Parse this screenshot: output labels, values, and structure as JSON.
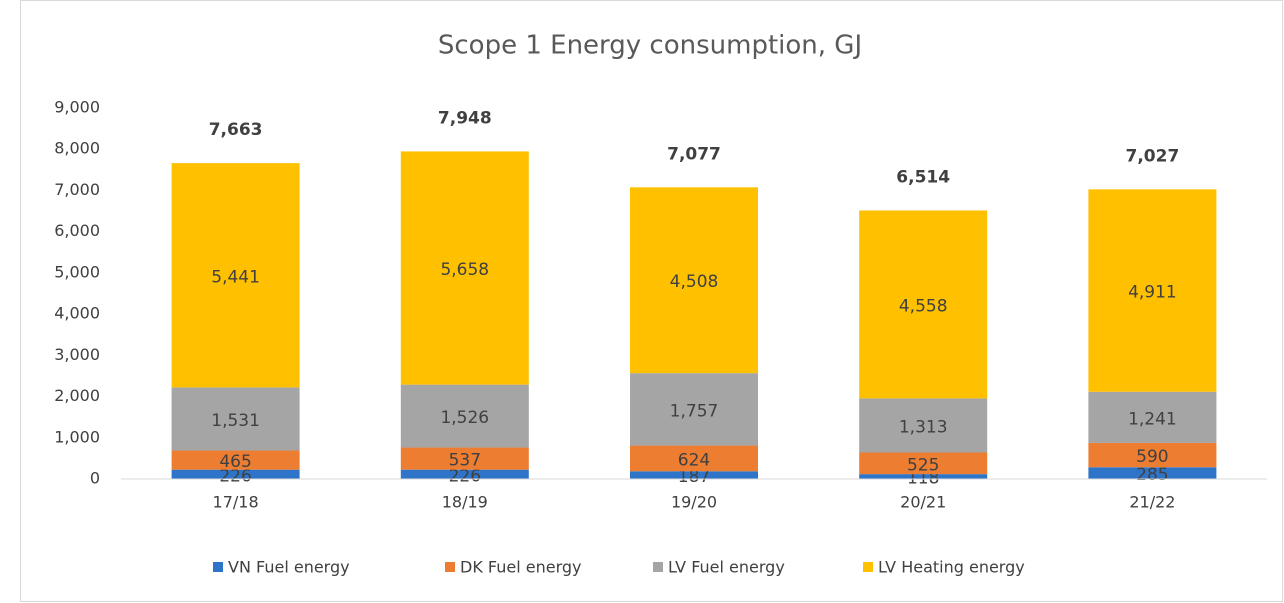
{
  "chart_data": {
    "type": "stacked_bar",
    "title": "Scope 1 Energy consumption, GJ",
    "categories": [
      "17/18",
      "18/19",
      "19/20",
      "20/21",
      "21/22"
    ],
    "series": [
      {
        "name": "VN Fuel energy",
        "color": "#2e75c9",
        "values": [
          226,
          226,
          187,
          118,
          285
        ],
        "value_labels": [
          "226",
          "226",
          "187",
          "118",
          "285"
        ]
      },
      {
        "name": "DK Fuel energy",
        "color": "#ed7d31",
        "values": [
          465,
          537,
          624,
          525,
          590
        ],
        "value_labels": [
          "465",
          "537",
          "624",
          "525",
          "590"
        ]
      },
      {
        "name": "LV Fuel energy",
        "color": "#a5a5a5",
        "values": [
          1531,
          1526,
          1757,
          1313,
          1241
        ],
        "value_labels": [
          "1,531",
          "1,526",
          "1,757",
          "1,313",
          "1,241"
        ]
      },
      {
        "name": "LV Heating energy",
        "color": "#ffc000",
        "values": [
          5441,
          5658,
          4508,
          4558,
          4911
        ],
        "value_labels": [
          "5,441",
          "5,658",
          "4,508",
          "4,558",
          "4,911"
        ]
      }
    ],
    "totals": [
      7663,
      7948,
      7077,
      6514,
      7027
    ],
    "total_labels": [
      "7,663",
      "7,948",
      "7,077",
      "6,514",
      "7,027"
    ],
    "ylim": [
      0,
      9000
    ],
    "yticks": [
      0,
      {
        "value": 1000,
        "label": "1,000"
      },
      {
        "value": 2000,
        "label": "2,000"
      },
      {
        "value": 3000,
        "label": "3,000"
      },
      {
        "value": 4000,
        "label": "4,000"
      },
      {
        "value": 5000,
        "label": "5,000"
      },
      {
        "value": 6000,
        "label": "6,000"
      },
      {
        "value": 7000,
        "label": "7,000"
      },
      {
        "value": 8000,
        "label": "8,000"
      },
      {
        "value": 9000,
        "label": "9,000"
      }
    ],
    "grid": false,
    "legend": "bottom"
  }
}
